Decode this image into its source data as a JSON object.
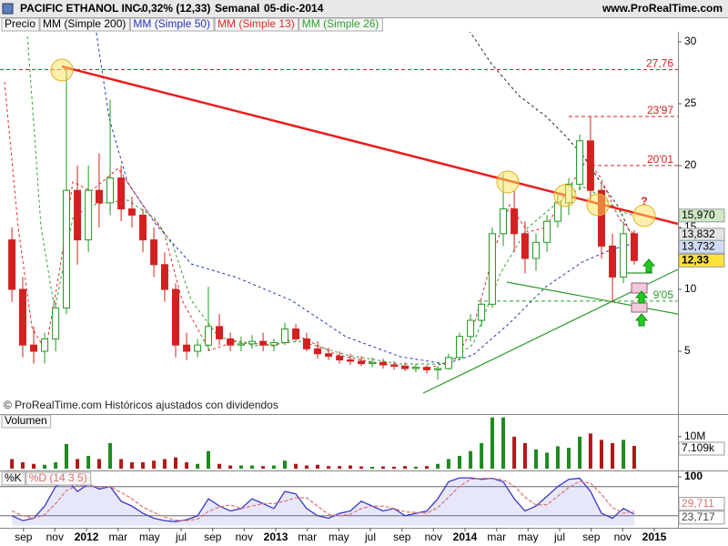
{
  "header": {
    "title": "PACIFIC ETHANOL INC.",
    "change": "-0,32% (12,33)",
    "period": "Semanal",
    "date": "05-dic-2014",
    "site": "www.ProRealTime.com"
  },
  "chart_data": [
    {
      "type": "candlestick",
      "note": "© ProRealTime.com Históricos ajustados con dividendos",
      "xlim": [
        2011.543,
        2015.125
      ],
      "ylim": [
        1,
        31
      ],
      "yticks": [
        5,
        10,
        15,
        20,
        25,
        30
      ],
      "candles": {
        "name": "Precio",
        "up_color": "#1f9a1f",
        "down_color": "#d42020",
        "x": [
          2011.606,
          2011.663,
          2011.721,
          2011.779,
          2011.837,
          2011.894,
          2011.952,
          2012.01,
          2012.067,
          2012.125,
          2012.183,
          2012.24,
          2012.298,
          2012.356,
          2012.413,
          2012.471,
          2012.529,
          2012.587,
          2012.644,
          2012.702,
          2012.76,
          2012.817,
          2012.875,
          2012.933,
          2012.99,
          2013.048,
          2013.106,
          2013.163,
          2013.221,
          2013.279,
          2013.337,
          2013.394,
          2013.452,
          2013.51,
          2013.567,
          2013.625,
          2013.683,
          2013.74,
          2013.798,
          2013.856,
          2013.913,
          2013.971,
          2014.029,
          2014.087,
          2014.144,
          2014.202,
          2014.26,
          2014.317,
          2014.375,
          2014.433,
          2014.49,
          2014.548,
          2014.606,
          2014.663,
          2014.721,
          2014.779,
          2014.837,
          2014.894
        ],
        "open": [
          14,
          10,
          5.5,
          5,
          6,
          8.5,
          18,
          14,
          18,
          17,
          19,
          16.5,
          16,
          14,
          12,
          10,
          5.5,
          5,
          5.5,
          7,
          6,
          5.5,
          5.6,
          5.8,
          5.5,
          5.7,
          6.8,
          6,
          5.2,
          4.8,
          4.6,
          4.3,
          4.2,
          4,
          4.1,
          3.9,
          3.8,
          3.6,
          3.7,
          3.5,
          3.6,
          4.5,
          6.2,
          7.5,
          8.8,
          14.5,
          16.5,
          14.5,
          12.5,
          13.8,
          15.5,
          17,
          18.5,
          22,
          18,
          13.5,
          11,
          14.5
        ],
        "high": [
          15,
          11,
          7,
          6.5,
          9,
          27.8,
          20,
          20,
          21,
          25.3,
          20,
          17.5,
          16.5,
          15,
          13,
          10.5,
          6.5,
          6,
          10.2,
          8,
          6.5,
          6.2,
          6.3,
          6.5,
          6,
          7.3,
          7.2,
          6.5,
          5.8,
          5.3,
          5,
          4.8,
          4.6,
          4.5,
          4.4,
          4.2,
          4.1,
          4,
          3.9,
          3.8,
          4.8,
          6.5,
          8,
          9,
          15,
          19.3,
          18,
          15.5,
          14.5,
          16,
          17.8,
          19,
          22.5,
          23.97,
          18.5,
          14.5,
          15.5,
          14.8
        ],
        "low": [
          9,
          4.5,
          4,
          4,
          5,
          8,
          12,
          13,
          15,
          16,
          15.5,
          15,
          13,
          11,
          9,
          4.5,
          4.3,
          4.5,
          5,
          5.5,
          5,
          5,
          5.2,
          5,
          5,
          5.5,
          5.8,
          5,
          4.4,
          4.3,
          4,
          3.9,
          3.8,
          3.7,
          3.6,
          3.5,
          3.4,
          3.3,
          3.2,
          2.7,
          3.5,
          4.3,
          5.8,
          7,
          8.5,
          13.5,
          13,
          11.3,
          11.5,
          13,
          15,
          16,
          18,
          17,
          12.5,
          9,
          10.5,
          12
        ],
        "close": [
          10,
          5.5,
          5,
          6,
          8.5,
          18,
          14,
          18,
          17,
          19,
          16.5,
          16,
          14,
          12,
          10,
          5.5,
          5,
          5.5,
          7,
          6,
          5.5,
          5.6,
          5.8,
          5.5,
          5.7,
          6.8,
          6,
          5.2,
          4.8,
          4.6,
          4.3,
          4.2,
          4,
          4.1,
          3.9,
          3.8,
          3.6,
          3.7,
          3.5,
          3.6,
          4.5,
          6.2,
          7.5,
          8.8,
          14.5,
          16.5,
          14.5,
          12.5,
          13.8,
          15.5,
          17,
          18.5,
          22,
          18,
          13.5,
          11,
          14.5,
          12.33
        ]
      },
      "series": [
        {
          "name": "MM (Simple 200)",
          "color": "#222222",
          "x": [
            2014.005,
            2014.139,
            2014.284,
            2014.428,
            2014.524,
            2014.62,
            2014.716,
            2014.813,
            2014.894
          ],
          "values": [
            31.3,
            28.24,
            25.66,
            23.97,
            22.5,
            20.88,
            18.68,
            16.62,
            13.832
          ]
        },
        {
          "name": "MM (Simple 50)",
          "color": "#2233bb",
          "x": [
            2012.048,
            2012.12,
            2012.216,
            2012.361,
            2012.553,
            2012.793,
            2013.082,
            2013.37,
            2013.659,
            2013.899,
            2014.043,
            2014.236,
            2014.428,
            2014.62,
            2014.764,
            2014.894
          ],
          "values": [
            31.18,
            23.82,
            18.68,
            15.37,
            12.06,
            10.96,
            9.12,
            6.18,
            4.56,
            3.97,
            4.71,
            7.28,
            10.22,
            12.21,
            13.16,
            13.732
          ]
        },
        {
          "name": "MM (Simple 13)",
          "color": "#e02828",
          "x": [
            2011.567,
            2011.639,
            2011.712,
            2011.784,
            2011.856,
            2011.928,
            2012.024,
            2012.168,
            2012.313,
            2012.409,
            2012.505,
            2012.649,
            2012.793,
            2012.986,
            2013.13,
            2013.322,
            2013.563,
            2013.803,
            2013.947,
            2014.043,
            2014.163,
            2014.236,
            2014.332,
            2014.428,
            2014.524,
            2014.644,
            2014.716,
            2014.813,
            2014.894
          ],
          "values": [
            26.76,
            15.0,
            6.91,
            5.07,
            11.32,
            18.68,
            17.94,
            19.78,
            16.47,
            14.63,
            9.12,
            5.07,
            5.81,
            5.44,
            6.18,
            4.71,
            3.97,
            3.6,
            4.34,
            6.91,
            13.53,
            16.84,
            14.63,
            15.0,
            17.57,
            20.51,
            19.04,
            15.74,
            14.41
          ]
        },
        {
          "name": "MM (Simple 26)",
          "color": "#2e9e2e",
          "x": [
            2011.688,
            2011.76,
            2011.832,
            2011.928,
            2012.024,
            2012.216,
            2012.361,
            2012.457,
            2012.553,
            2012.697,
            2012.889,
            2013.13,
            2013.37,
            2013.659,
            2013.899,
            2014.043,
            2014.188,
            2014.332,
            2014.476,
            2014.62,
            2014.716,
            2014.813,
            2014.894
          ],
          "values": [
            30.44,
            15.0,
            8.38,
            15.74,
            16.84,
            17.21,
            15.74,
            13.53,
            9.12,
            6.18,
            5.44,
            5.81,
            4.71,
            3.97,
            3.97,
            5.59,
            11.32,
            15.0,
            16.84,
            18.31,
            17.57,
            16.32,
            15.97
          ]
        }
      ],
      "levels": [
        {
          "value": 27.76,
          "label": "27,76",
          "color": "#d42020"
        },
        {
          "value": 23.97,
          "label": "23'97",
          "color": "#d42020",
          "from": 2014.548
        },
        {
          "value": 20.01,
          "label": "20'01",
          "color": "#d42020",
          "from": 2014.668
        },
        {
          "value": 9.05,
          "label": "9'05",
          "color": "#2e9e2e",
          "from": 2014.067
        }
      ],
      "trendlines": [
        {
          "color": "#ee1c1c",
          "width": 2.5,
          "x": [
            2011.87,
            2015.125
          ],
          "values": [
            28.01,
            15.29
          ]
        },
        {
          "color": "#2a9a2a",
          "width": 1.2,
          "x": [
            2013.779,
            2015.125
          ],
          "values": [
            1.62,
            11.62
          ]
        },
        {
          "color": "#2a9a2a",
          "width": 1.2,
          "x": [
            2014.221,
            2015.125
          ],
          "values": [
            10.59,
            8.01
          ]
        },
        {
          "color": "#2a9a2a",
          "width": 1.2,
          "x": [
            2014.851,
            2014.99
          ],
          "values": [
            11.32,
            11.32
          ]
        }
      ],
      "highlights": {
        "x": [
          2011.87,
          2014.226,
          2014.529,
          2014.702,
          2014.947
        ],
        "values": [
          27.72,
          18.68,
          17.57,
          16.84,
          15.96
        ]
      },
      "question": "?",
      "price_tags": [
        {
          "value": 15.97,
          "label": "15,970",
          "color": "#cfe9c6"
        },
        {
          "value": 13.832,
          "label": "13,832",
          "color": "#e4e4e4"
        },
        {
          "value": 13.732,
          "label": "13,732",
          "color": "#cfdcf2"
        },
        {
          "value": 12.33,
          "label": "12,33",
          "color": "#ffe23a"
        }
      ]
    },
    {
      "type": "bar",
      "title": "Volumen",
      "xlim": [
        2011.543,
        2015.125
      ],
      "ylim": [
        0,
        16500000
      ],
      "yticks": [
        {
          "value": 10000000,
          "label": "10M"
        }
      ],
      "values": [
        3000000,
        2000000,
        1500000,
        1200000,
        2000000,
        7700000,
        3000000,
        4000000,
        3000000,
        8000000,
        3000000,
        2000000,
        2000000,
        2500000,
        3000000,
        3500000,
        2000000,
        1500000,
        5500000,
        1500000,
        1000000,
        1000000,
        1000000,
        800000,
        1000000,
        2500000,
        1500000,
        1000000,
        1200000,
        800000,
        800000,
        1000000,
        700000,
        600000,
        700000,
        600000,
        800000,
        600000,
        800000,
        1500000,
        3000000,
        4000000,
        5500000,
        8000000,
        16000000,
        16000000,
        10000000,
        8000000,
        6000000,
        5000000,
        7000000,
        6500000,
        10000000,
        11000000,
        9000000,
        8000000,
        9000000,
        7109000
      ],
      "value_tag": {
        "value": 7109000,
        "label": "7.109k"
      }
    },
    {
      "type": "line",
      "xlim": [
        2011.543,
        2015.125
      ],
      "ylim": [
        0,
        100
      ],
      "yticks": [
        100
      ],
      "levels": [
        20,
        80
      ],
      "xticks": [
        {
          "value": 2011.667,
          "label": "sep"
        },
        {
          "value": 2011.833,
          "label": "nov"
        },
        2012,
        {
          "value": 2012.167,
          "label": "mar"
        },
        {
          "value": 2012.333,
          "label": "may"
        },
        {
          "value": 2012.5,
          "label": "jul"
        },
        {
          "value": 2012.667,
          "label": "sep"
        },
        {
          "value": 2012.833,
          "label": "nov"
        },
        2013,
        {
          "value": 2013.167,
          "label": "mar"
        },
        {
          "value": 2013.333,
          "label": "may"
        },
        {
          "value": 2013.5,
          "label": "jul"
        },
        {
          "value": 2013.667,
          "label": "sep"
        },
        {
          "value": 2013.833,
          "label": "nov"
        },
        2014,
        {
          "value": 2014.167,
          "label": "mar"
        },
        {
          "value": 2014.333,
          "label": "may"
        },
        {
          "value": 2014.5,
          "label": "jul"
        },
        {
          "value": 2014.667,
          "label": "sep"
        },
        {
          "value": 2014.833,
          "label": "nov"
        },
        2015
      ],
      "series": [
        {
          "name": "%K",
          "color": "#3838c8",
          "values": [
            20,
            10,
            15,
            40,
            80,
            95,
            70,
            85,
            75,
            80,
            50,
            40,
            25,
            15,
            10,
            8,
            12,
            20,
            55,
            40,
            30,
            35,
            55,
            45,
            35,
            70,
            65,
            35,
            20,
            15,
            25,
            30,
            50,
            40,
            30,
            35,
            20,
            25,
            30,
            55,
            90,
            98,
            98,
            95,
            97,
            90,
            55,
            30,
            40,
            60,
            80,
            95,
            97,
            70,
            25,
            15,
            35,
            23.717
          ]
        },
        {
          "name": "%D (14 3 5)",
          "color": "#e07070",
          "values": [
            30,
            20,
            15,
            22,
            45,
            72,
            82,
            83,
            77,
            80,
            68,
            55,
            38,
            27,
            17,
            11,
            10,
            13,
            29,
            38,
            42,
            35,
            40,
            45,
            45,
            50,
            57,
            57,
            40,
            23,
            20,
            23,
            35,
            40,
            40,
            35,
            28,
            27,
            25,
            37,
            58,
            81,
            95,
            97,
            97,
            94,
            81,
            58,
            42,
            43,
            60,
            78,
            91,
            87,
            64,
            37,
            25,
            29.711
          ]
        }
      ],
      "value_tags": [
        {
          "value": 29.711,
          "label": "29,711",
          "color": "#e07070"
        },
        {
          "value": 23.717,
          "label": "23,717",
          "color": "#444444"
        }
      ]
    }
  ]
}
